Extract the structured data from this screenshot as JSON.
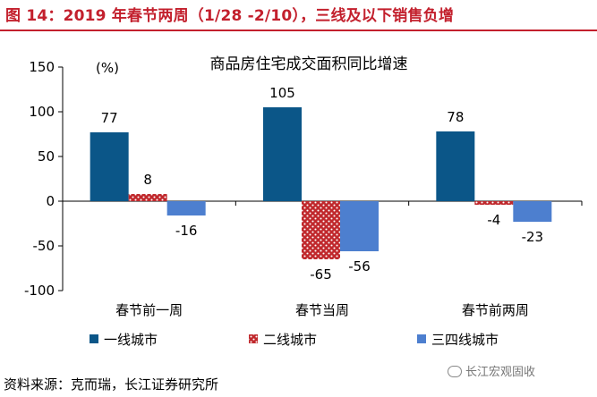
{
  "figure_title": "图 14：2019 年春节两周（1/28 -2/10），三线及以下销售负增",
  "source": "资料来源：克而瑞，长江证券研究所",
  "watermark": "长江宏观固收",
  "colors": {
    "title_red": "#c3202d",
    "series1": "#0b5688",
    "series2": "#c0282c",
    "series3": "#4d7fcf"
  },
  "chart_data": {
    "type": "bar",
    "title": "商品房住宅成交面积同比增速",
    "ylabel": "(%)",
    "ylim": [
      -100,
      150
    ],
    "yticks": [
      -100,
      -50,
      0,
      50,
      100,
      150
    ],
    "ytick_labels": [
      "-100",
      "-50",
      "0",
      "50",
      "100",
      "150"
    ],
    "grid": false,
    "legend_position": "bottom",
    "categories": [
      "春节前一周",
      "春节当周",
      "春节前两周"
    ],
    "series": [
      {
        "name": "一线城市",
        "values": [
          77,
          105,
          78
        ],
        "labels": [
          "77",
          "105",
          "78"
        ],
        "color": "#0b5688",
        "pattern": "solid"
      },
      {
        "name": "二线城市",
        "values": [
          8,
          -65,
          -4
        ],
        "labels": [
          "8",
          "-65",
          "-4"
        ],
        "color": "#c0282c",
        "pattern": "dots"
      },
      {
        "name": "三四线城市",
        "values": [
          -16,
          -56,
          -23
        ],
        "labels": [
          "-16",
          "-56",
          "-23"
        ],
        "color": "#4d7fcf",
        "pattern": "solid"
      }
    ]
  }
}
